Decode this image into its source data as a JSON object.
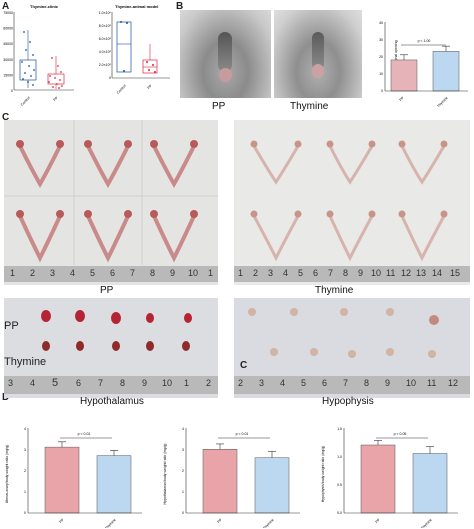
{
  "panels": {
    "a": "A",
    "b": "B",
    "c": "C",
    "d": "D",
    "c_inset": "C"
  },
  "panel_a": {
    "left_title": "Thymine-clinic",
    "left_yticks": [
      "75000",
      "60000",
      "45000",
      "30000",
      "15000",
      "0"
    ],
    "left_ylabel": "Thymine level",
    "left_groups": [
      "Control",
      "PP"
    ],
    "right_title": "Thymine-animal model",
    "right_yticks": [
      "1.0×10⁶",
      "8.0×10⁵",
      "6.0×10⁵",
      "4.0×10⁵",
      "2.0×10⁵",
      "0"
    ],
    "right_groups": [
      "Control",
      "PP"
    ],
    "colors": {
      "control": "#1f4fa8",
      "pp": "#e0263a"
    }
  },
  "panel_b": {
    "photo_labels": [
      "PP",
      "Thymine"
    ],
    "chart_title": "",
    "ylabel": "Grade of vaginal opening",
    "pvalue": "p < 1.00",
    "yticks": [
      "40",
      "30",
      "20",
      "10",
      "0"
    ],
    "groups": [
      "PP",
      "Thymine"
    ]
  },
  "panel_c": {
    "uterus_labels": [
      "PP",
      "Thymine"
    ],
    "ruler_ticks": [
      "1",
      "2",
      "3",
      "4",
      "5",
      "6",
      "7",
      "8",
      "9",
      "10",
      "1"
    ],
    "ruler_ticks_right": [
      "1",
      "2",
      "3",
      "4",
      "5",
      "6",
      "7",
      "8",
      "9",
      "10",
      "11",
      "12",
      "13",
      "14",
      "15"
    ],
    "hypothalamus_row_labels": [
      "PP",
      "Thymine"
    ],
    "hypothalamus_ruler": [
      "3",
      "4",
      "5",
      "6",
      "7",
      "8",
      "9",
      "10",
      "1",
      "2"
    ],
    "hypophysis_ruler": [
      "2",
      "3",
      "4",
      "5",
      "6",
      "7",
      "8",
      "9",
      "10",
      "11",
      "12"
    ],
    "captions": [
      "Hypothalamus",
      "Hypophysis"
    ]
  },
  "panel_d": {
    "charts": [
      {
        "ylabel": "Uterus-ovary/body weight ratio (mg/g)",
        "pvalue": "p < 0.01",
        "groups": [
          "PP",
          "Thymine"
        ],
        "yticks": [
          "4",
          "3",
          "2",
          "1",
          "0"
        ]
      },
      {
        "ylabel": "Hypothalamus/body weight ratio (mg/g)",
        "pvalue": "p < 0.01",
        "groups": [
          "PP",
          "Thymine"
        ],
        "yticks": [
          "4",
          "3",
          "2",
          "1",
          "0"
        ]
      },
      {
        "ylabel": "Hypophysis/body weight ratio (mg/g)",
        "pvalue": "p < 0.05",
        "groups": [
          "PP",
          "Thymine"
        ],
        "yticks": [
          "1.5",
          "1.0",
          "0.5",
          "0.0"
        ]
      }
    ],
    "colors": {
      "pp": "#e8a4a8",
      "thymine": "#bcd7f0"
    }
  },
  "chart_data": [
    {
      "type": "bar",
      "categories": [
        "PP",
        "Thymine"
      ],
      "values": [
        18,
        23
      ],
      "errors": [
        3,
        3
      ],
      "ylabel": "Grade of vaginal opening",
      "ylim": [
        0,
        40
      ]
    },
    {
      "type": "bar",
      "categories": [
        "PP",
        "Thymine"
      ],
      "values": [
        3.1,
        2.7
      ],
      "errors": [
        0.25,
        0.25
      ],
      "ylabel": "Uterus-ovary/body weight ratio (mg/g)",
      "ylim": [
        0,
        4
      ]
    },
    {
      "type": "bar",
      "categories": [
        "PP",
        "Thymine"
      ],
      "values": [
        3.0,
        2.6
      ],
      "errors": [
        0.25,
        0.3
      ],
      "ylabel": "Hypothalamus/body weight ratio (mg/g)",
      "ylim": [
        0,
        4
      ]
    },
    {
      "type": "bar",
      "categories": [
        "PP",
        "Thymine"
      ],
      "values": [
        1.2,
        1.05
      ],
      "errors": [
        0.08,
        0.12
      ],
      "ylabel": "Hypophysis/body weight ratio (mg/g)",
      "ylim": [
        0,
        1.5
      ]
    }
  ]
}
